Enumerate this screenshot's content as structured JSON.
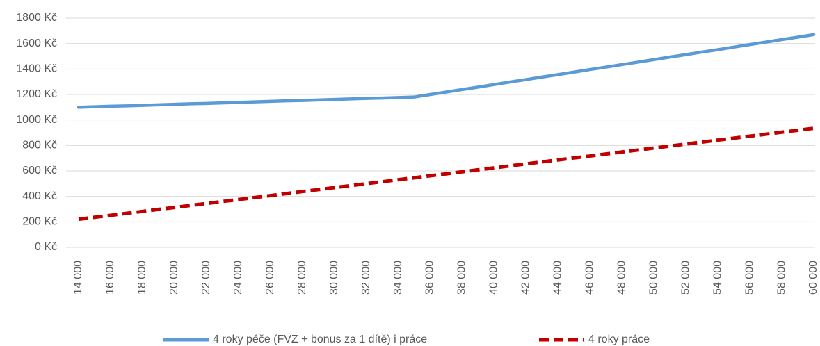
{
  "chart_data": {
    "type": "line",
    "categories": [
      "14 000",
      null,
      "16 000",
      null,
      "18 000",
      null,
      "20 000",
      null,
      "22 000",
      null,
      "24 000",
      null,
      "26 000",
      null,
      "28 000",
      null,
      "30 000",
      null,
      "32 000",
      null,
      "34 000",
      null,
      "36 000",
      null,
      "38 000",
      null,
      "40 000",
      null,
      "42 000",
      null,
      "44 000",
      null,
      "46 000",
      null,
      "48 000",
      null,
      "50 000",
      null,
      "52 000",
      null,
      "54 000",
      null,
      "56 000",
      null,
      "58 000",
      null,
      "60 000"
    ],
    "series": [
      {
        "name": "4 roky péče (FVZ + bonus za 1 dítě) i práce",
        "color": "#5b9bd5",
        "dash": false,
        "values": [
          1100,
          1104,
          1108,
          1111,
          1115,
          1119,
          1123,
          1127,
          1130,
          1134,
          1138,
          1142,
          1146,
          1150,
          1153,
          1157,
          1161,
          1165,
          1169,
          1172,
          1176,
          1180,
          1200,
          1219,
          1239,
          1258,
          1278,
          1298,
          1317,
          1337,
          1356,
          1376,
          1396,
          1415,
          1435,
          1454,
          1474,
          1494,
          1513,
          1533,
          1552,
          1572,
          1592,
          1611,
          1631,
          1650,
          1670
        ]
      },
      {
        "name": "4 roky práce",
        "color": "#c00000",
        "dash": true,
        "values": [
          220,
          236,
          251,
          267,
          282,
          298,
          313,
          329,
          344,
          360,
          375,
          391,
          406,
          422,
          438,
          453,
          469,
          484,
          500,
          515,
          531,
          546,
          562,
          577,
          593,
          609,
          624,
          640,
          655,
          671,
          686,
          702,
          717,
          733,
          749,
          764,
          780,
          795,
          811,
          826,
          842,
          857,
          873,
          888,
          904,
          919,
          935
        ]
      }
    ],
    "ylim": [
      0,
      1800
    ],
    "yticks": [
      {
        "value": 0,
        "label": "0 Kč"
      },
      {
        "value": 200,
        "label": "200 Kč"
      },
      {
        "value": 400,
        "label": "400 Kč"
      },
      {
        "value": 600,
        "label": "600 Kč"
      },
      {
        "value": 800,
        "label": "800 Kč"
      },
      {
        "value": 1000,
        "label": "1000 Kč"
      },
      {
        "value": 1200,
        "label": "1200 Kč"
      },
      {
        "value": 1400,
        "label": "1400 Kč"
      },
      {
        "value": 1600,
        "label": "1600 Kč"
      },
      {
        "value": 1800,
        "label": "1800 Kč"
      }
    ],
    "grid": true,
    "legend": "bottom"
  }
}
